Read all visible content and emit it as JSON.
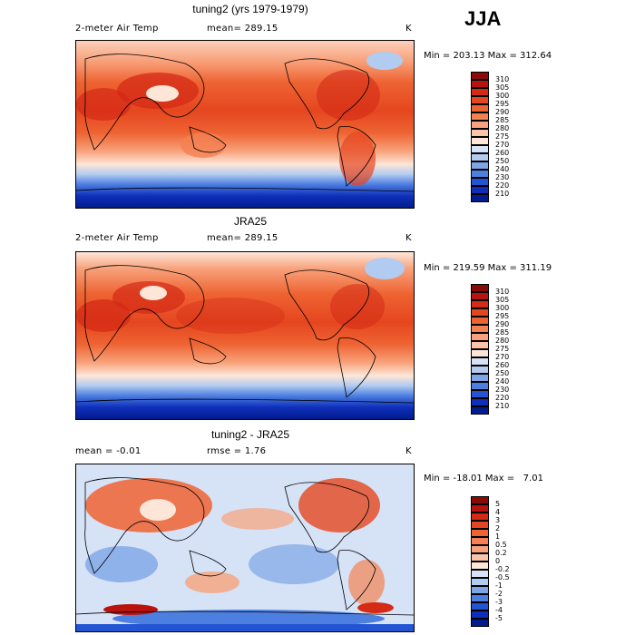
{
  "season": "JJA",
  "panels": [
    {
      "title": "tuning2 (yrs 1979-1979)",
      "field": "2-meter Air Temp",
      "mean": "mean= 289.15",
      "units": "K",
      "minmax": "Min = 203.13 Max = 312.64",
      "kind": "abs"
    },
    {
      "title": "JRA25",
      "field": "2-meter Air Temp",
      "mean": "mean= 289.15",
      "units": "K",
      "minmax": "Min = 219.59 Max = 311.19",
      "kind": "abs"
    },
    {
      "title": "tuning2 - JRA25",
      "mean": "mean =   -0.01",
      "rmse": "rmse =   1.76",
      "units": "K",
      "minmax": "Min = -18.01 Max =   7.01",
      "kind": "diff"
    }
  ],
  "colorbars": {
    "abs": {
      "labels": [
        "310",
        "305",
        "300",
        "295",
        "290",
        "285",
        "280",
        "275",
        "270",
        "260",
        "250",
        "240",
        "230",
        "220",
        "210"
      ],
      "colors": [
        "#8a0a0a",
        "#b8130f",
        "#d42a16",
        "#e5461f",
        "#ee6332",
        "#f48152",
        "#f8a17a",
        "#fbc3a8",
        "#fde6d8",
        "#d6e3f6",
        "#b2cbf0",
        "#7ea5e8",
        "#4d7fe0",
        "#2354d3",
        "#0f2fba",
        "#021c8e"
      ]
    },
    "diff": {
      "labels": [
        "5",
        "4",
        "3",
        "2",
        "1",
        "0.5",
        "0.2",
        "0",
        "-0.2",
        "-0.5",
        "-1",
        "-2",
        "-3",
        "-4",
        "-5"
      ],
      "colors": [
        "#8a0a0a",
        "#b8130f",
        "#d42a16",
        "#e5461f",
        "#ee6332",
        "#f48152",
        "#f8a17a",
        "#fbc3a8",
        "#fde6d8",
        "#d6e3f6",
        "#b2cbf0",
        "#7ea5e8",
        "#4d7fe0",
        "#2354d3",
        "#0f2fba",
        "#021c8e"
      ]
    }
  }
}
